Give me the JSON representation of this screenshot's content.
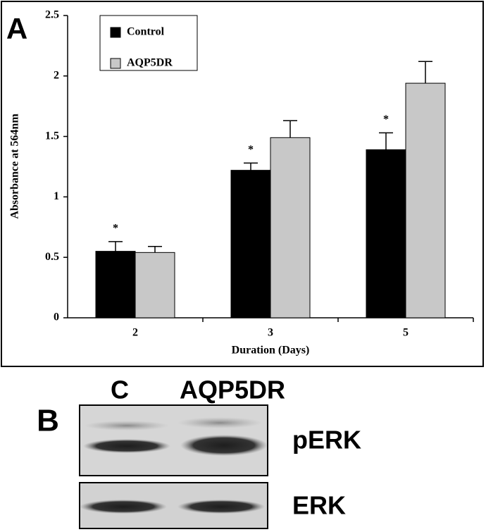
{
  "chart_data": {
    "type": "bar",
    "panel_label": "A",
    "ylabel": "Absorbance at 564nm",
    "xlabel": "Duration (Days)",
    "categories": [
      "2",
      "3",
      "5"
    ],
    "series": [
      {
        "name": "Control",
        "color": "#000000",
        "values": [
          0.55,
          1.22,
          1.39
        ],
        "errors": [
          0.08,
          0.06,
          0.14
        ]
      },
      {
        "name": "AQP5DR",
        "color": "#c8c8c8",
        "values": [
          0.54,
          1.49,
          1.94
        ],
        "errors": [
          0.05,
          0.14,
          0.18
        ]
      }
    ],
    "annotations": [
      "*",
      "*",
      "*"
    ],
    "ylim": [
      0,
      2.5
    ],
    "yticks": [
      0,
      0.5,
      1,
      1.5,
      2,
      2.5
    ],
    "grid": false
  },
  "blot": {
    "panel_label": "B",
    "lanes": [
      "C",
      "AQP5DR"
    ],
    "rows": [
      "pERK",
      "ERK"
    ]
  }
}
